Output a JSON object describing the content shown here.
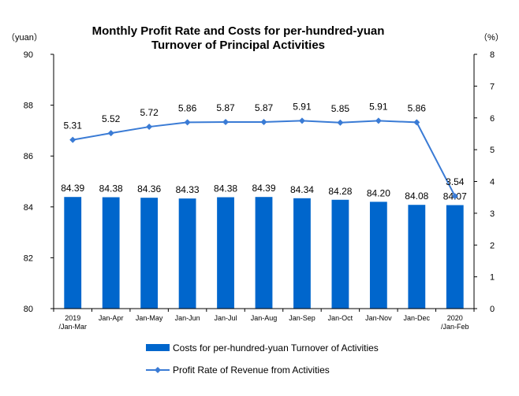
{
  "chart_data": {
    "type": "bar+line",
    "title": [
      "Monthly Profit Rate and Costs for per-hundred-yuan",
      "Turnover of Principal Activities"
    ],
    "y_left_unit": "（yuan）",
    "y_right_unit": "（%）",
    "categories": [
      [
        "2019",
        "/Jan-Mar"
      ],
      [
        "Jan-Apr"
      ],
      [
        "Jan-May"
      ],
      [
        "Jan-Jun"
      ],
      [
        "Jan-Jul"
      ],
      [
        "Jan-Aug"
      ],
      [
        "Jan-Sep"
      ],
      [
        "Jan-Oct"
      ],
      [
        "Jan-Nov"
      ],
      [
        "Jan-Dec"
      ],
      [
        "2020",
        "/Jan-Feb"
      ]
    ],
    "left_axis": {
      "min": 80,
      "max": 90,
      "step": 2,
      "ticks": [
        "80",
        "82",
        "84",
        "86",
        "88",
        "90"
      ]
    },
    "right_axis": {
      "min": 0,
      "max": 8,
      "step": 1,
      "ticks": [
        "0",
        "1",
        "2",
        "3",
        "4",
        "5",
        "6",
        "7",
        "8"
      ]
    },
    "series": [
      {
        "name": "Costs for per-hundred-yuan Turnover of  Activities",
        "kind": "bar",
        "axis": "left",
        "color": "#0066CC",
        "values": [
          84.39,
          84.38,
          84.36,
          84.33,
          84.38,
          84.39,
          84.34,
          84.28,
          84.2,
          84.08,
          84.07
        ],
        "labels": [
          "84.39",
          "84.38",
          "84.36",
          "84.33",
          "84.38",
          "84.39",
          "84.34",
          "84.28",
          "84.20",
          "84.08",
          "84.07"
        ]
      },
      {
        "name": "Profit Rate of Revenue from Activities",
        "kind": "line",
        "axis": "right",
        "color": "#3A7BD5",
        "values": [
          5.31,
          5.52,
          5.72,
          5.86,
          5.87,
          5.87,
          5.91,
          5.85,
          5.91,
          5.86,
          3.54
        ],
        "labels": [
          "5.31",
          "5.52",
          "5.72",
          "5.86",
          "5.87",
          "5.87",
          "5.91",
          "5.85",
          "5.91",
          "5.86",
          "3.54"
        ]
      }
    ],
    "legend_position": "bottom",
    "grid": false
  }
}
